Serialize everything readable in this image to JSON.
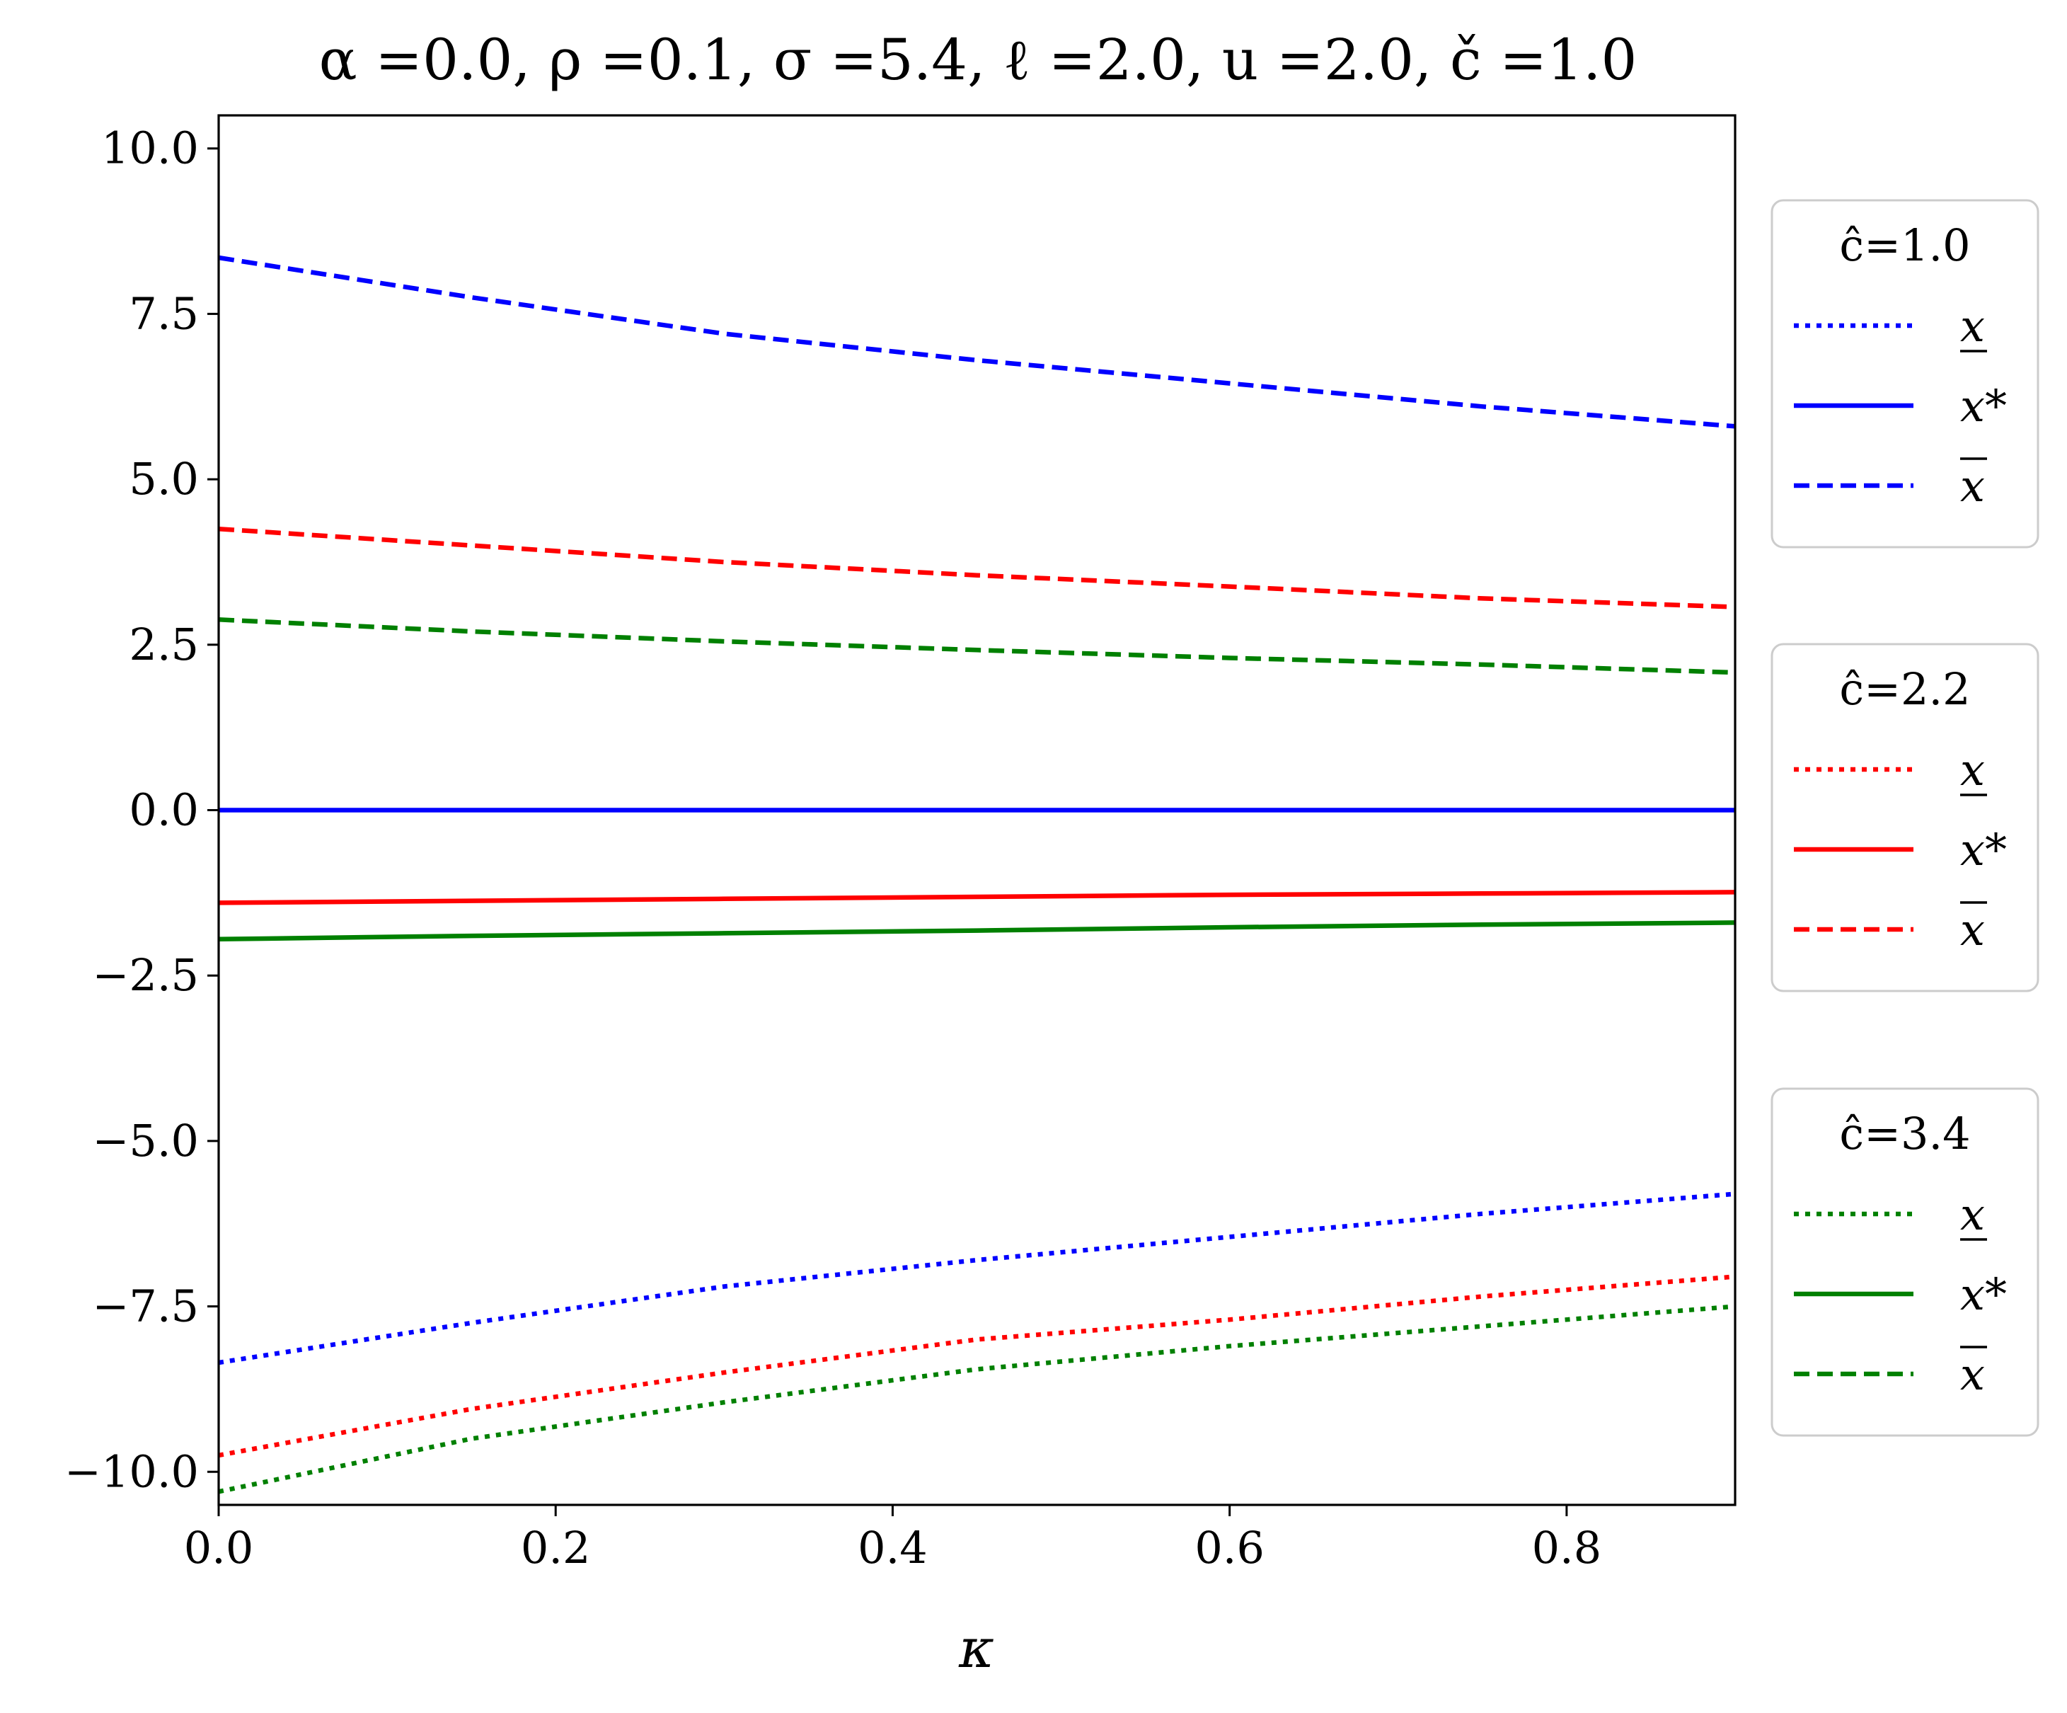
{
  "chart_data": {
    "type": "line",
    "title": "α =0.0, ρ =0.1, σ =5.4, ℓ =2.0, u =2.0, č =1.0",
    "xlabel": "κ",
    "ylabel": "",
    "xlim": [
      0.0,
      0.9
    ],
    "ylim": [
      -10.5,
      10.5
    ],
    "xticks": [
      0.0,
      0.2,
      0.4,
      0.6,
      0.8
    ],
    "xtick_labels": [
      "0.0",
      "0.2",
      "0.4",
      "0.6",
      "0.8"
    ],
    "yticks": [
      10.0,
      7.5,
      5.0,
      2.5,
      0.0,
      -2.5,
      -5.0,
      -7.5,
      -10.0
    ],
    "ytick_labels": [
      "10.0",
      "7.5",
      "5.0",
      "2.5",
      "0.0",
      "−2.5",
      "−5.0",
      "−7.5",
      "−10.0"
    ],
    "grid": false,
    "legend_placement": "right, outside",
    "x": [
      0.0,
      0.15,
      0.3,
      0.45,
      0.6,
      0.75,
      0.9
    ],
    "groups": [
      {
        "title": "ĉ=1.0",
        "color": "#0000ff",
        "series": [
          {
            "name": "x",
            "style": "dotted",
            "y": [
              -8.35,
              -7.75,
              -7.2,
              -6.8,
              -6.45,
              -6.1,
              -5.8
            ]
          },
          {
            "name": "x*",
            "style": "solid",
            "y": [
              0.0,
              0.0,
              0.0,
              0.0,
              0.0,
              0.0,
              0.0
            ]
          },
          {
            "name": "x",
            "style": "dashed",
            "y": [
              8.35,
              7.75,
              7.2,
              6.8,
              6.45,
              6.1,
              5.8
            ]
          }
        ]
      },
      {
        "title": "ĉ=2.2",
        "color": "#ff0000",
        "series": [
          {
            "name": "x",
            "style": "dotted",
            "y": [
              -9.75,
              -9.05,
              -8.5,
              -8.0,
              -7.7,
              -7.35,
              -7.05
            ]
          },
          {
            "name": "x*",
            "style": "solid",
            "y": [
              -1.4,
              -1.37,
              -1.34,
              -1.31,
              -1.28,
              -1.26,
              -1.24
            ]
          },
          {
            "name": "x",
            "style": "dashed",
            "y": [
              4.25,
              4.0,
              3.75,
              3.55,
              3.38,
              3.2,
              3.07
            ]
          }
        ]
      },
      {
        "title": "ĉ=3.4",
        "color": "#008000",
        "series": [
          {
            "name": "x",
            "style": "dotted",
            "y": [
              -10.3,
              -9.5,
              -8.95,
              -8.45,
              -8.1,
              -7.8,
              -7.5
            ]
          },
          {
            "name": "x*",
            "style": "solid",
            "y": [
              -1.95,
              -1.9,
              -1.86,
              -1.82,
              -1.77,
              -1.73,
              -1.7
            ]
          },
          {
            "name": "x",
            "style": "dashed",
            "y": [
              2.88,
              2.7,
              2.55,
              2.42,
              2.3,
              2.2,
              2.08
            ]
          }
        ]
      }
    ]
  }
}
